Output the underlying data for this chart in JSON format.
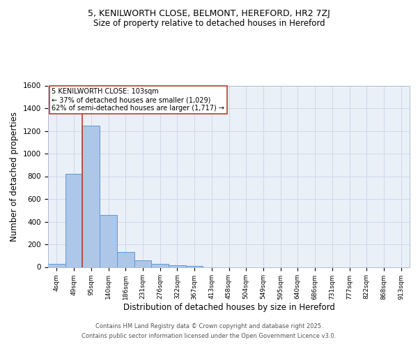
{
  "title1": "5, KENILWORTH CLOSE, BELMONT, HEREFORD, HR2 7ZJ",
  "title2": "Size of property relative to detached houses in Hereford",
  "xlabel": "Distribution of detached houses by size in Hereford",
  "ylabel": "Number of detached properties",
  "categories": [
    "4sqm",
    "49sqm",
    "95sqm",
    "140sqm",
    "186sqm",
    "231sqm",
    "276sqm",
    "322sqm",
    "367sqm",
    "413sqm",
    "458sqm",
    "504sqm",
    "549sqm",
    "595sqm",
    "640sqm",
    "686sqm",
    "731sqm",
    "777sqm",
    "822sqm",
    "868sqm",
    "913sqm"
  ],
  "values": [
    25,
    820,
    1245,
    460,
    135,
    60,
    25,
    15,
    10,
    0,
    0,
    0,
    0,
    0,
    0,
    0,
    0,
    0,
    0,
    0,
    0
  ],
  "bar_color": "#aec6e8",
  "bar_edge_color": "#5b9bd5",
  "redline_x": 2,
  "redline_color": "#c0392b",
  "annotation_text": "5 KENILWORTH CLOSE: 103sqm\n← 37% of detached houses are smaller (1,029)\n62% of semi-detached houses are larger (1,717) →",
  "annotation_box_color": "#ffffff",
  "annotation_box_edge": "#c0392b",
  "ylim": [
    0,
    1600
  ],
  "yticks": [
    0,
    200,
    400,
    600,
    800,
    1000,
    1200,
    1400,
    1600
  ],
  "grid_color": "#d0d8e8",
  "bg_color": "#eaf0f8",
  "footer1": "Contains HM Land Registry data © Crown copyright and database right 2025.",
  "footer2": "Contains public sector information licensed under the Open Government Licence v3.0."
}
